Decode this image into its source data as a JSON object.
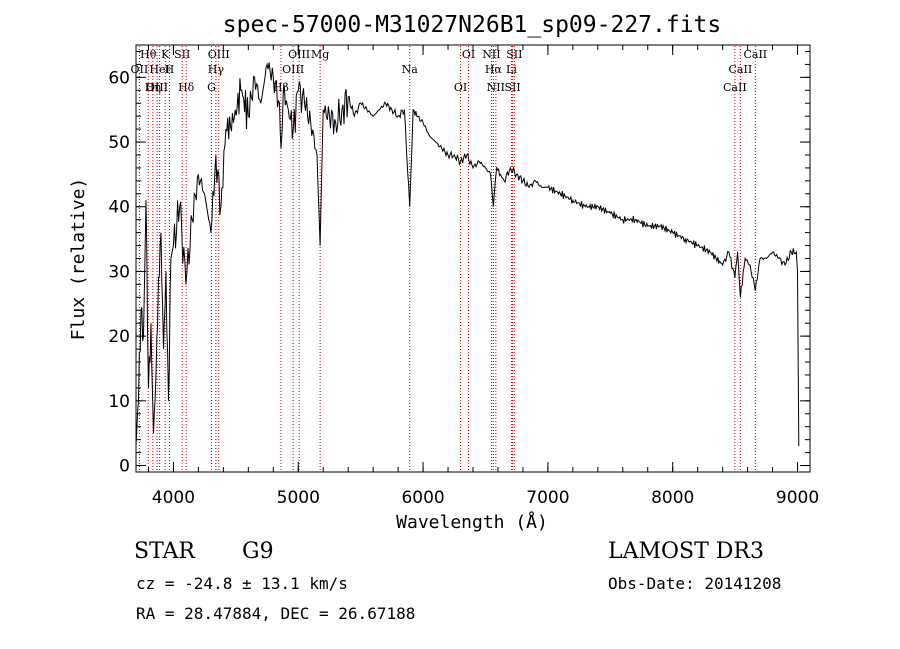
{
  "chart_data": {
    "type": "line",
    "title": "spec-57000-M31027N26B1_sp09-227.fits",
    "xlabel": "Wavelength (Å)",
    "ylabel": "Flux (relative)",
    "xlim": [
      3700,
      9100
    ],
    "ylim": [
      -1,
      65
    ],
    "x_ticks": [
      4000,
      5000,
      6000,
      7000,
      8000,
      9000
    ],
    "y_ticks": [
      0,
      10,
      20,
      30,
      40,
      50,
      60
    ],
    "series": [
      {
        "name": "spectrum",
        "x": [
          3700,
          3720,
          3740,
          3760,
          3780,
          3800,
          3820,
          3840,
          3860,
          3880,
          3900,
          3920,
          3940,
          3960,
          3980,
          4000,
          4050,
          4100,
          4150,
          4200,
          4250,
          4300,
          4340,
          4380,
          4420,
          4480,
          4540,
          4600,
          4650,
          4700,
          4750,
          4800,
          4850,
          4862,
          4880,
          4920,
          4960,
          5000,
          5050,
          5100,
          5150,
          5175,
          5200,
          5250,
          5300,
          5350,
          5400,
          5450,
          5500,
          5550,
          5600,
          5650,
          5700,
          5750,
          5800,
          5850,
          5893,
          5920,
          5950,
          6000,
          6050,
          6100,
          6150,
          6200,
          6250,
          6300,
          6350,
          6400,
          6450,
          6500,
          6540,
          6563,
          6590,
          6620,
          6650,
          6700,
          6750,
          6800,
          6850,
          6900,
          6950,
          7000,
          7100,
          7200,
          7300,
          7400,
          7500,
          7600,
          7700,
          7800,
          7900,
          8000,
          8100,
          8200,
          8300,
          8400,
          8450,
          8498,
          8520,
          8542,
          8580,
          8620,
          8662,
          8700,
          8750,
          8800,
          8850,
          8900,
          8950,
          8990,
          9000,
          9010
        ],
        "y": [
          3,
          10,
          24,
          20,
          41,
          12,
          22,
          5,
          14,
          29,
          36,
          18,
          30,
          10,
          32,
          34,
          40,
          28,
          38,
          45,
          42,
          36,
          48,
          40,
          52,
          53,
          58,
          54,
          60,
          56,
          62,
          60,
          56,
          49,
          58,
          55,
          52,
          58,
          56,
          53,
          48,
          34,
          55,
          54,
          53,
          55,
          57,
          54,
          56,
          55,
          54,
          55,
          56,
          55,
          54,
          55,
          40,
          55,
          54,
          53,
          51,
          50,
          49,
          48,
          48,
          47,
          48,
          46,
          47,
          46,
          45,
          40,
          46,
          45,
          44,
          46,
          45,
          44,
          43,
          44,
          43,
          43,
          42,
          41,
          40,
          40,
          39,
          38,
          38,
          37,
          37,
          36,
          35,
          34,
          33,
          31,
          33,
          29,
          33,
          26,
          32,
          31,
          27,
          32,
          32,
          33,
          32,
          31,
          33,
          33,
          30,
          3
        ]
      }
    ],
    "spectral_lines": [
      {
        "label": "Hθ",
        "x": 3798
      },
      {
        "label": "OII",
        "x": 3727
      },
      {
        "label": "OIII",
        "x": 3869
      },
      {
        "label": "K",
        "x": 3934
      },
      {
        "label": "HeI",
        "x": 3889
      },
      {
        "label": "Hη",
        "x": 3835
      },
      {
        "label": "SII",
        "x": 4070
      },
      {
        "label": "H",
        "x": 3968
      },
      {
        "label": "Hδ",
        "x": 4102
      },
      {
        "label": "OIII",
        "x": 4363
      },
      {
        "label": "Hγ",
        "x": 4340
      },
      {
        "label": "G",
        "x": 4305
      },
      {
        "label": "OIII",
        "x": 5007
      },
      {
        "label": "OIII",
        "x": 4959
      },
      {
        "label": "Hβ",
        "x": 4861
      },
      {
        "label": "Mg",
        "x": 5175
      },
      {
        "label": "Na",
        "x": 5893
      },
      {
        "label": "OI",
        "x": 6300
      },
      {
        "label": "OI",
        "x": 6364
      },
      {
        "label": "Hα",
        "x": 6563
      },
      {
        "label": "SII",
        "x": 6717
      },
      {
        "label": "NII",
        "x": 6548
      },
      {
        "label": "Li",
        "x": 6708
      },
      {
        "label": "NII",
        "x": 6583
      },
      {
        "label": "SII",
        "x": 6731
      },
      {
        "label": "CaII",
        "x": 8542
      },
      {
        "label": "CaII",
        "x": 8498
      },
      {
        "label": "CaII",
        "x": 8662
      }
    ]
  },
  "info": {
    "object_class": "STAR",
    "subclass": "G9",
    "survey": "LAMOST DR3",
    "redshift_text": "cz = -24.8 ± 13.1 km/s",
    "obs_date": "Obs-Date: 20141208",
    "coords": "RA =  28.47884, DEC =  26.67188"
  },
  "colors": {
    "spectrum": "#000000",
    "line_marker": "#cc0000",
    "axes": "#000000"
  }
}
